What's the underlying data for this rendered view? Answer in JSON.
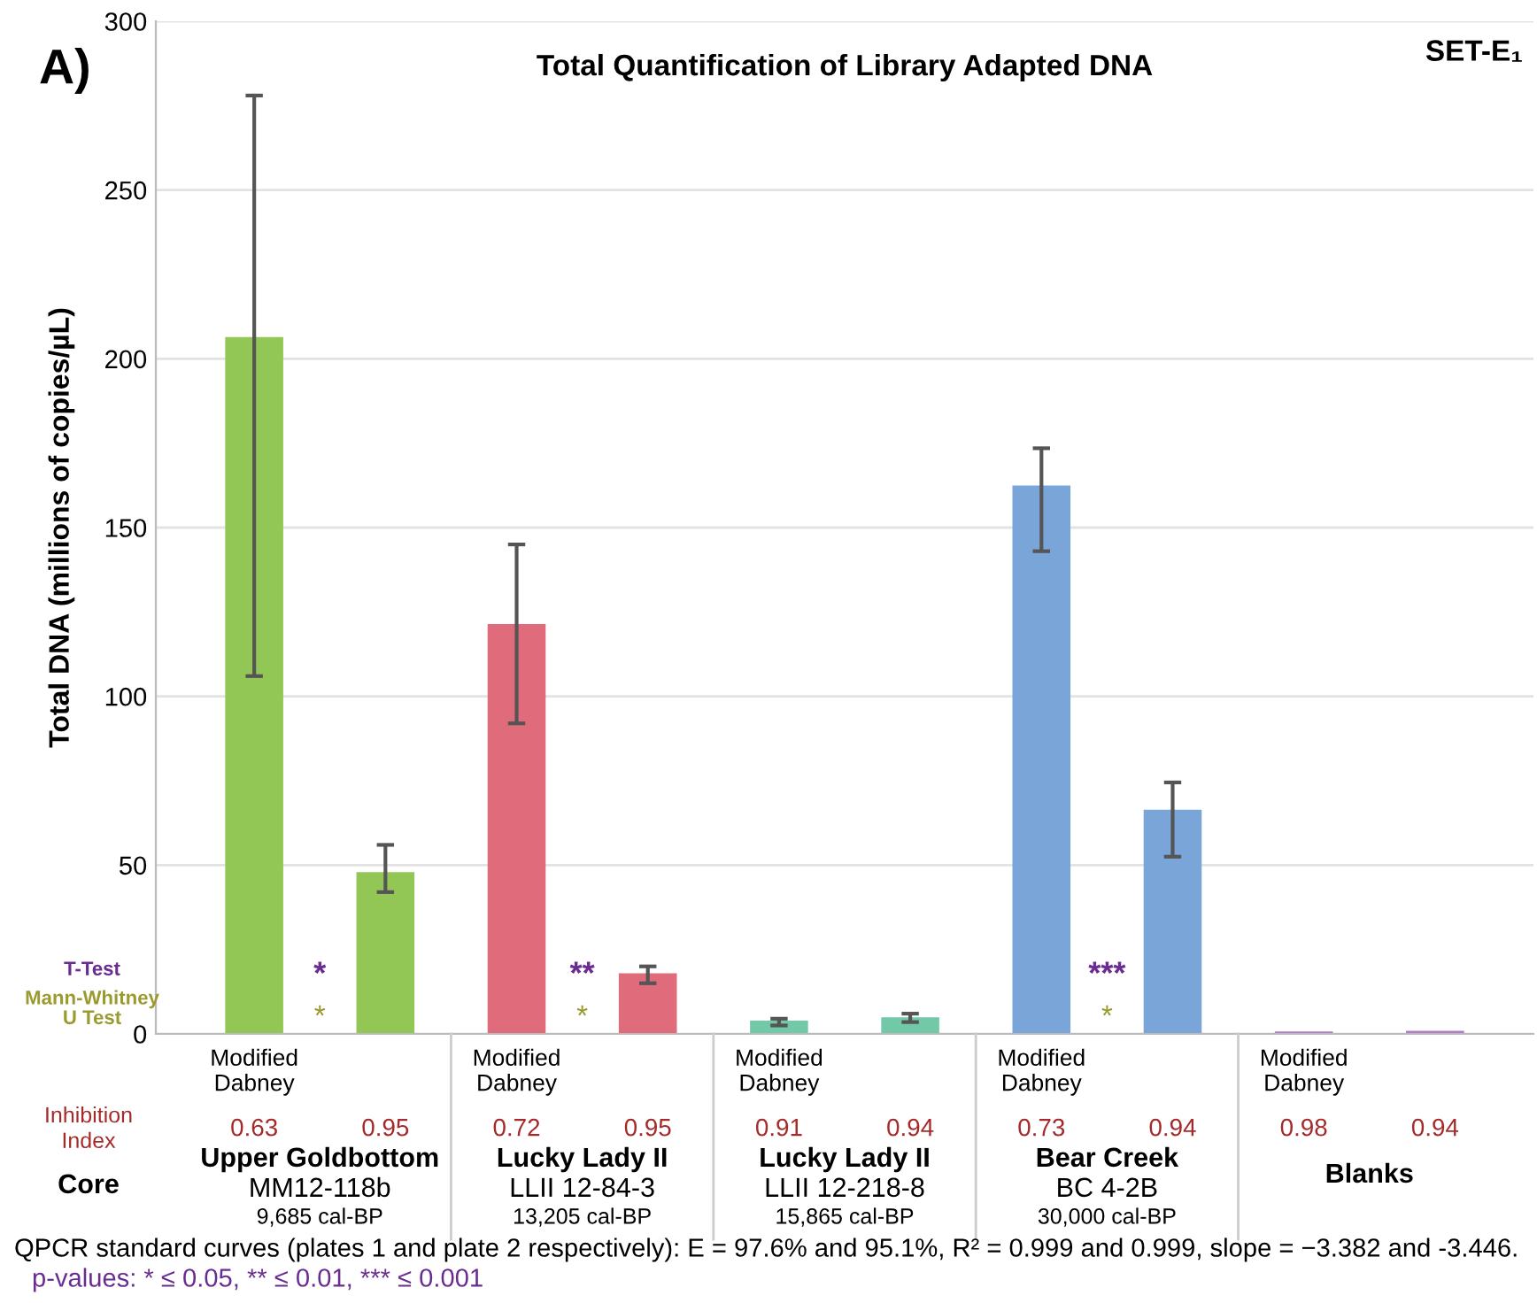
{
  "chart_data": {
    "type": "bar",
    "title": "Total Quantification of Library Adapted DNA",
    "ylabel": "Total DNA (millions of copies/µL)",
    "categories": [
      "Modified\nDabney",
      null,
      "Modified\nDabney",
      null,
      "Modified\nDabney",
      null,
      "Modified\nDabney",
      null,
      "Modified\nDabney",
      null
    ],
    "values": [
      206,
      47.5,
      121,
      17.5,
      3.5,
      4.5,
      162,
      66,
      0.3,
      0.5
    ],
    "colors": [
      "#92c756",
      "#92c756",
      "#e06c7b",
      "#e06c7b",
      "#72c9a8",
      "#72c9a8",
      "#7aa5d9",
      "#7aa5d9",
      "#b07cc6",
      "#b07cc6"
    ],
    "errors": [
      [
        106,
        278
      ],
      [
        42,
        56
      ],
      [
        92,
        145
      ],
      [
        15,
        20
      ],
      [
        2.5,
        4.5
      ],
      [
        3.5,
        6
      ],
      [
        143,
        173.5
      ],
      [
        52.5,
        74.5
      ],
      null,
      null
    ],
    "ylim": [
      0,
      300
    ],
    "yticks": [
      0,
      50,
      100,
      150,
      200,
      250,
      300
    ],
    "grid": "y",
    "legend": false,
    "annotations": [
      "A)",
      "SET-E₁",
      "T-Test",
      "Mann-Whitney\nU Test",
      "*",
      "*",
      "**",
      "*",
      "***",
      "*",
      "Inhibition\nIndex",
      "0.63",
      "0.95",
      "0.72",
      "0.95",
      "0.91",
      "0.94",
      "0.73",
      "0.94",
      "0.98",
      "0.94",
      "Core",
      "Upper Goldbottom",
      "MM12-118b",
      "9,685 cal-BP",
      "Lucky Lady II",
      "LLII 12-84-3",
      "13,205 cal-BP",
      "Lucky Lady II",
      "LLII 12-218-8",
      "15,865 cal-BP",
      "Bear Creek",
      "BC 4-2B",
      "30,000 cal-BP",
      "Blanks",
      "QPCR standard curves (plates 1 and plate 2 respectively): E = 97.6% and 95.1%, R² = 0.999 and 0.999, slope = −3.382 and -3.446.",
      "p-values: * ≤ 0.05, ** ≤ 0.01, *** ≤ 0.001"
    ]
  }
}
